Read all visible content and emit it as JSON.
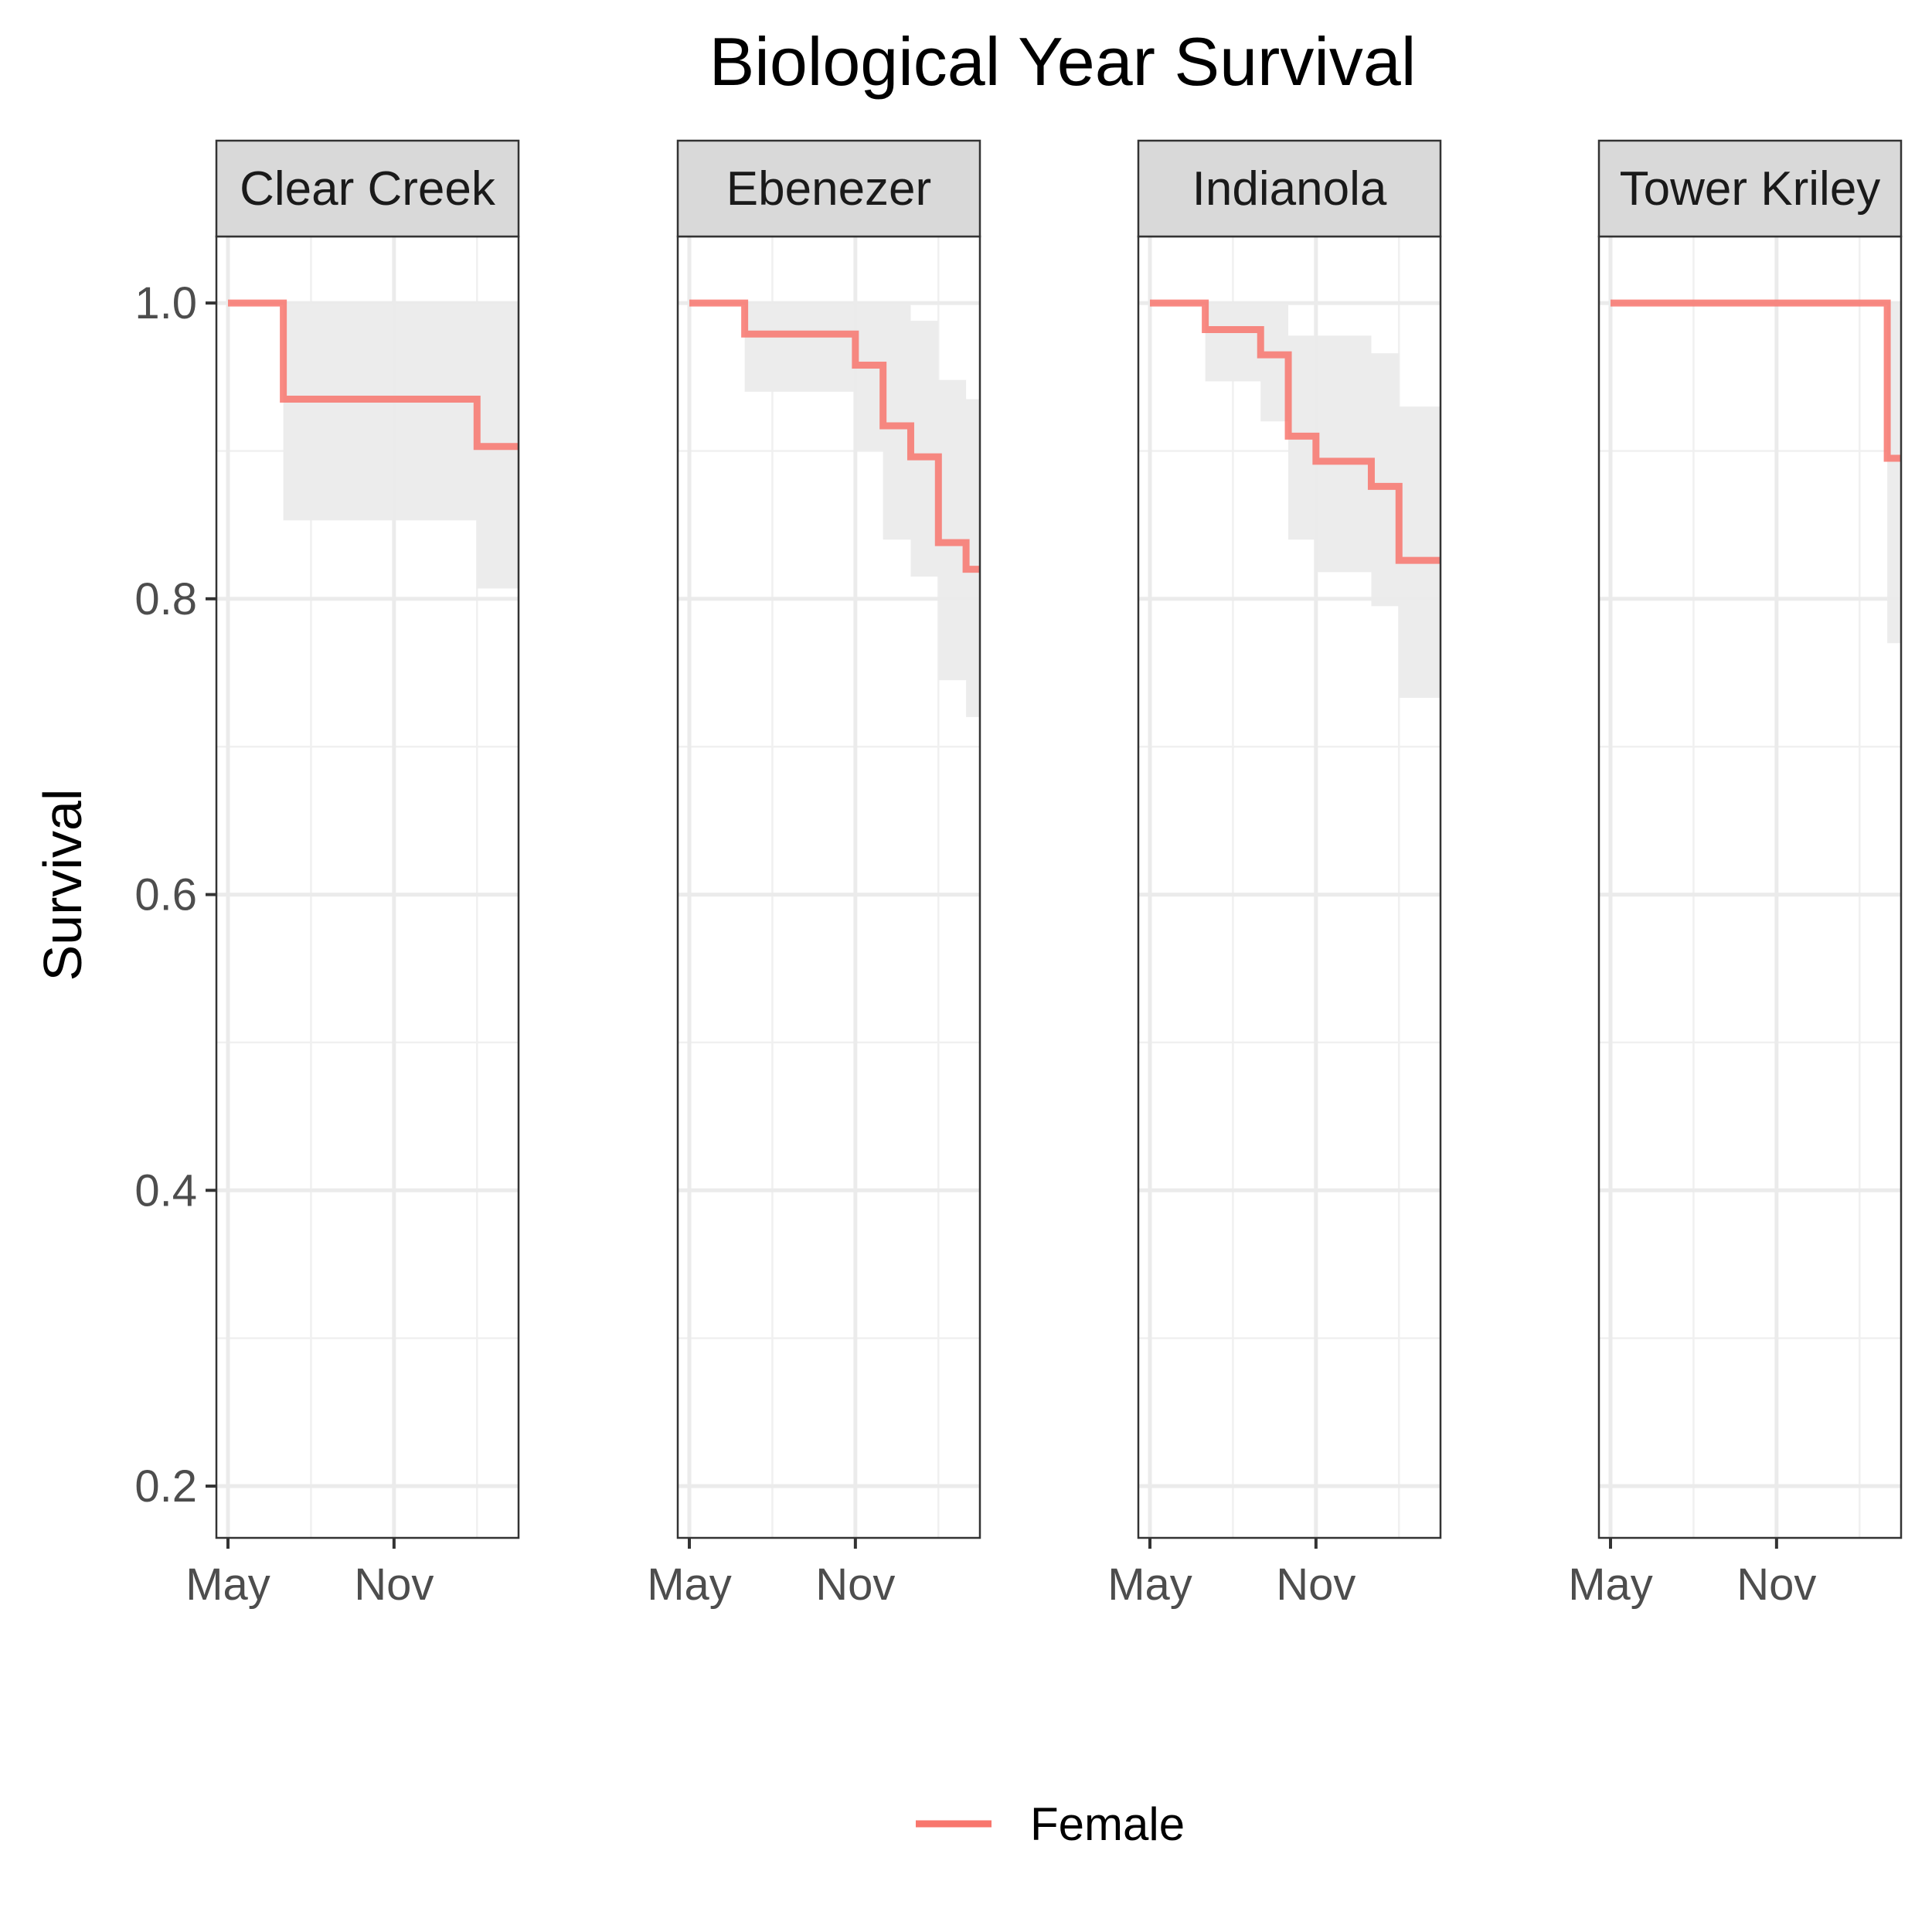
{
  "chart_data": {
    "type": "line",
    "title": "Biological Year Survival",
    "xlabel": "",
    "ylabel": "Survival",
    "x_axis": {
      "range": [
        0,
        10.5
      ],
      "breaks": [
        0,
        6
      ],
      "tick_labels": [
        "May",
        "Nov"
      ]
    },
    "ylim": [
      0.165,
      1.045
    ],
    "y_ticks": [
      0.2,
      0.4,
      0.6,
      0.8,
      1.0
    ],
    "y_tick_labels": [
      "0.2",
      "0.4",
      "0.6",
      "0.8",
      "1.0"
    ],
    "grid": true,
    "legend": {
      "position": "bottom",
      "entries": [
        {
          "label": "Female",
          "color": "#F8766D"
        }
      ]
    },
    "series_color": "#F8766D",
    "ribbon_color": "#EBEBEB",
    "facets": [
      {
        "label": "Clear Creek",
        "x": [
          0,
          2,
          9,
          10.5
        ],
        "y": [
          1.0,
          0.935,
          0.903,
          0.903
        ],
        "lower": [
          1.0,
          0.853,
          0.807,
          0.807
        ],
        "upper": [
          1.0,
          1.0,
          1.0,
          1.0
        ]
      },
      {
        "label": "Ebenezer",
        "x": [
          0,
          2,
          6,
          7,
          8,
          9,
          10,
          10.5
        ],
        "y": [
          1.0,
          0.979,
          0.958,
          0.917,
          0.896,
          0.838,
          0.82,
          0.82
        ],
        "lower": [
          1.0,
          0.94,
          0.9,
          0.84,
          0.815,
          0.745,
          0.72,
          0.72
        ],
        "upper": [
          1.0,
          1.0,
          1.0,
          1.0,
          0.988,
          0.948,
          0.935,
          0.935
        ]
      },
      {
        "label": "Indianola",
        "x": [
          0,
          2,
          4,
          5,
          6,
          8,
          9,
          10.5
        ],
        "y": [
          1.0,
          0.982,
          0.965,
          0.91,
          0.893,
          0.876,
          0.826,
          0.826
        ],
        "lower": [
          1.0,
          0.947,
          0.92,
          0.84,
          0.818,
          0.795,
          0.733,
          0.733
        ],
        "upper": [
          1.0,
          1.0,
          1.0,
          0.978,
          0.978,
          0.966,
          0.93,
          0.93
        ]
      },
      {
        "label": "Tower Kriley",
        "x": [
          0,
          10,
          10.5
        ],
        "y": [
          1.0,
          0.895,
          0.895
        ],
        "lower": [
          1.0,
          0.77,
          0.77
        ],
        "upper": [
          1.0,
          1.0,
          1.0
        ]
      }
    ]
  }
}
